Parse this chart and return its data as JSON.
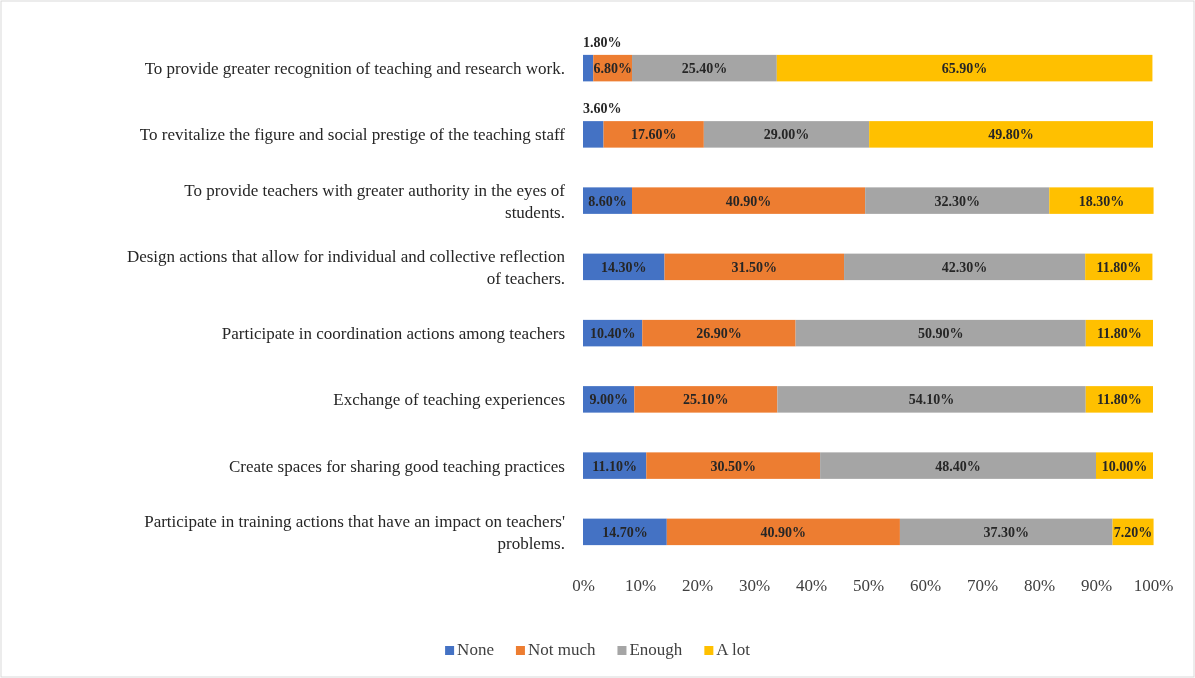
{
  "chart_data": {
    "type": "bar",
    "orientation": "horizontal",
    "stacked": true,
    "categories": [
      "To provide greater recognition of teaching and research work.",
      "To revitalize the figure and social prestige of the teaching staff",
      "To provide teachers with greater authority in the eyes of students.",
      "Design actions that allow for individual and collective reflection of teachers.",
      "Participate in coordination actions among teachers",
      "Exchange of teaching experiences",
      "Create spaces for sharing good teaching practices",
      "Participate in training actions that have an impact on teachers' problems."
    ],
    "series": [
      {
        "name": "None",
        "color": "#4472c4",
        "values": [
          1.8,
          3.6,
          8.6,
          14.3,
          10.4,
          9.0,
          11.1,
          14.7
        ],
        "value_labels": [
          "1.80%",
          "3.60%",
          "8.60%",
          "14.30%",
          "10.40%",
          "9.00%",
          "11.10%",
          "14.70%"
        ]
      },
      {
        "name": "Not much",
        "color": "#ed7d31",
        "values": [
          6.8,
          17.6,
          40.9,
          31.5,
          26.9,
          25.1,
          30.5,
          40.9
        ],
        "value_labels": [
          "6.80%",
          "17.60%",
          "40.90%",
          "31.50%",
          "26.90%",
          "25.10%",
          "30.50%",
          "40.90%"
        ]
      },
      {
        "name": "Enough",
        "color": "#a5a5a5",
        "values": [
          25.4,
          29.0,
          32.3,
          42.3,
          50.9,
          54.1,
          48.4,
          37.3
        ],
        "value_labels": [
          "25.40%",
          "29.00%",
          "32.30%",
          "42.30%",
          "50.90%",
          "54.10%",
          "48.40%",
          "37.30%"
        ]
      },
      {
        "name": "A lot",
        "color": "#ffc000",
        "values": [
          65.9,
          49.8,
          18.3,
          11.8,
          11.8,
          11.8,
          10.0,
          7.2
        ],
        "value_labels": [
          "65.90%",
          "49.80%",
          "18.30%",
          "11.80%",
          "11.80%",
          "11.80%",
          "10.00%",
          "7.20%"
        ]
      }
    ],
    "xlim": [
      0,
      100
    ],
    "xticks": [
      {
        "value": 0,
        "label": "0%"
      },
      {
        "value": 10,
        "label": "10%"
      },
      {
        "value": 20,
        "label": "20%"
      },
      {
        "value": 30,
        "label": "30%"
      },
      {
        "value": 40,
        "label": "40%"
      },
      {
        "value": 50,
        "label": "50%"
      },
      {
        "value": 60,
        "label": "60%"
      },
      {
        "value": 70,
        "label": "70%"
      },
      {
        "value": 80,
        "label": "80%"
      },
      {
        "value": 90,
        "label": "90%"
      },
      {
        "value": 100,
        "label": "100%"
      }
    ],
    "grid": false,
    "legend": "bottom"
  }
}
